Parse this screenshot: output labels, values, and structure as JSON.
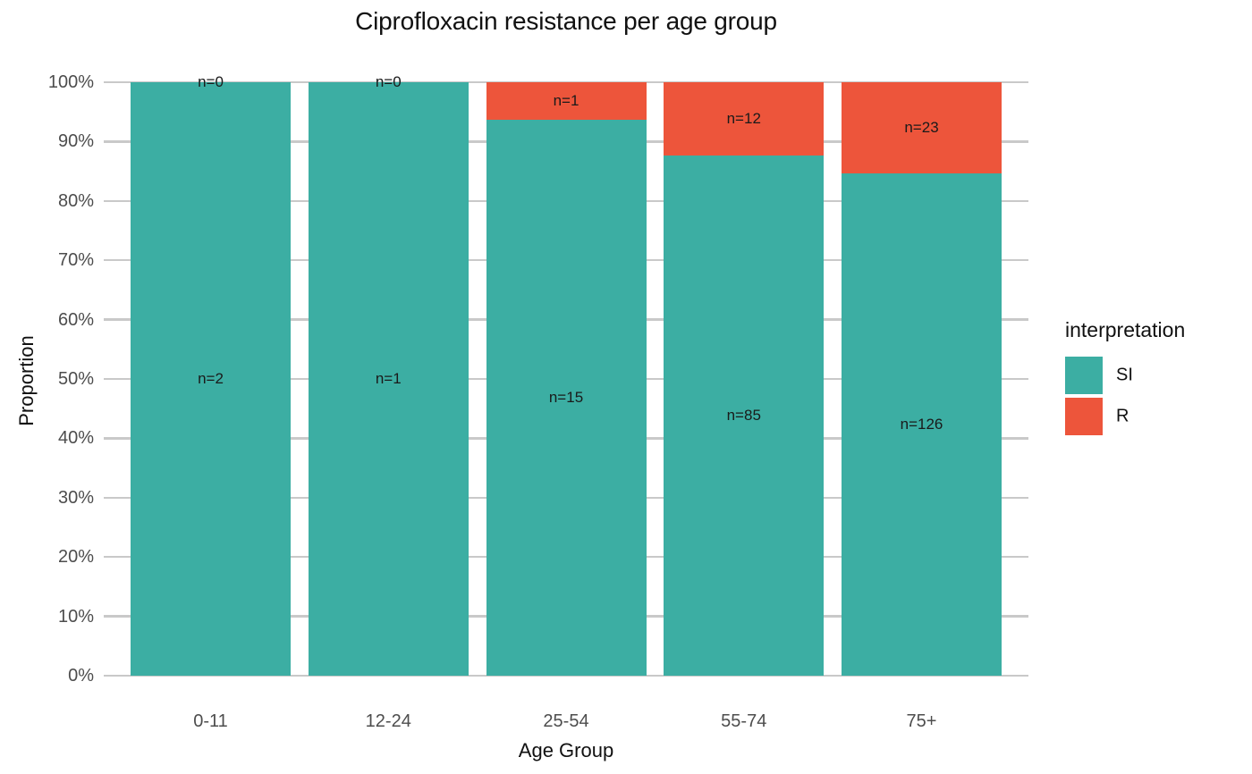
{
  "title": "Ciprofloxacin resistance per age group",
  "axes": {
    "x_title": "Age Group",
    "y_title": "Proportion",
    "y_ticks": [
      "0%",
      "10%",
      "20%",
      "30%",
      "40%",
      "50%",
      "60%",
      "70%",
      "80%",
      "90%",
      "100%"
    ]
  },
  "legend": {
    "title": "interpretation",
    "items": [
      {
        "label": "SI",
        "color": "#3CAEA3"
      },
      {
        "label": "R",
        "color": "#ED553B"
      }
    ]
  },
  "colors": {
    "si": "#3CAEA3",
    "r": "#ED553B",
    "gridline": "#C9C9C9",
    "axis_text": "#4D4D4D",
    "label_text": "#1A1A1A"
  },
  "chart_data": {
    "type": "bar",
    "subtype": "stacked-percent",
    "title": "Ciprofloxacin resistance per age group",
    "xlabel": "Age Group",
    "ylabel": "Proportion",
    "ylim": [
      0,
      1
    ],
    "grid": true,
    "legend_position": "right",
    "legend_title": "interpretation",
    "categories": [
      "0-11",
      "12-24",
      "25-54",
      "55-74",
      "75+"
    ],
    "series": [
      {
        "name": "SI",
        "color": "#3CAEA3",
        "values": [
          2,
          1,
          15,
          85,
          126
        ]
      },
      {
        "name": "R",
        "color": "#ED553B",
        "values": [
          0,
          0,
          1,
          12,
          23
        ]
      }
    ],
    "bar_label_prefix": "n=",
    "bar_labels": {
      "SI": [
        "n=2",
        "n=1",
        "n=15",
        "n=85",
        "n=126"
      ],
      "R": [
        "n=0",
        "n=0",
        "n=1",
        "n=12",
        "n=23"
      ]
    },
    "resistance_proportion_pct": [
      0,
      0,
      6.25,
      12.37,
      15.44
    ]
  }
}
